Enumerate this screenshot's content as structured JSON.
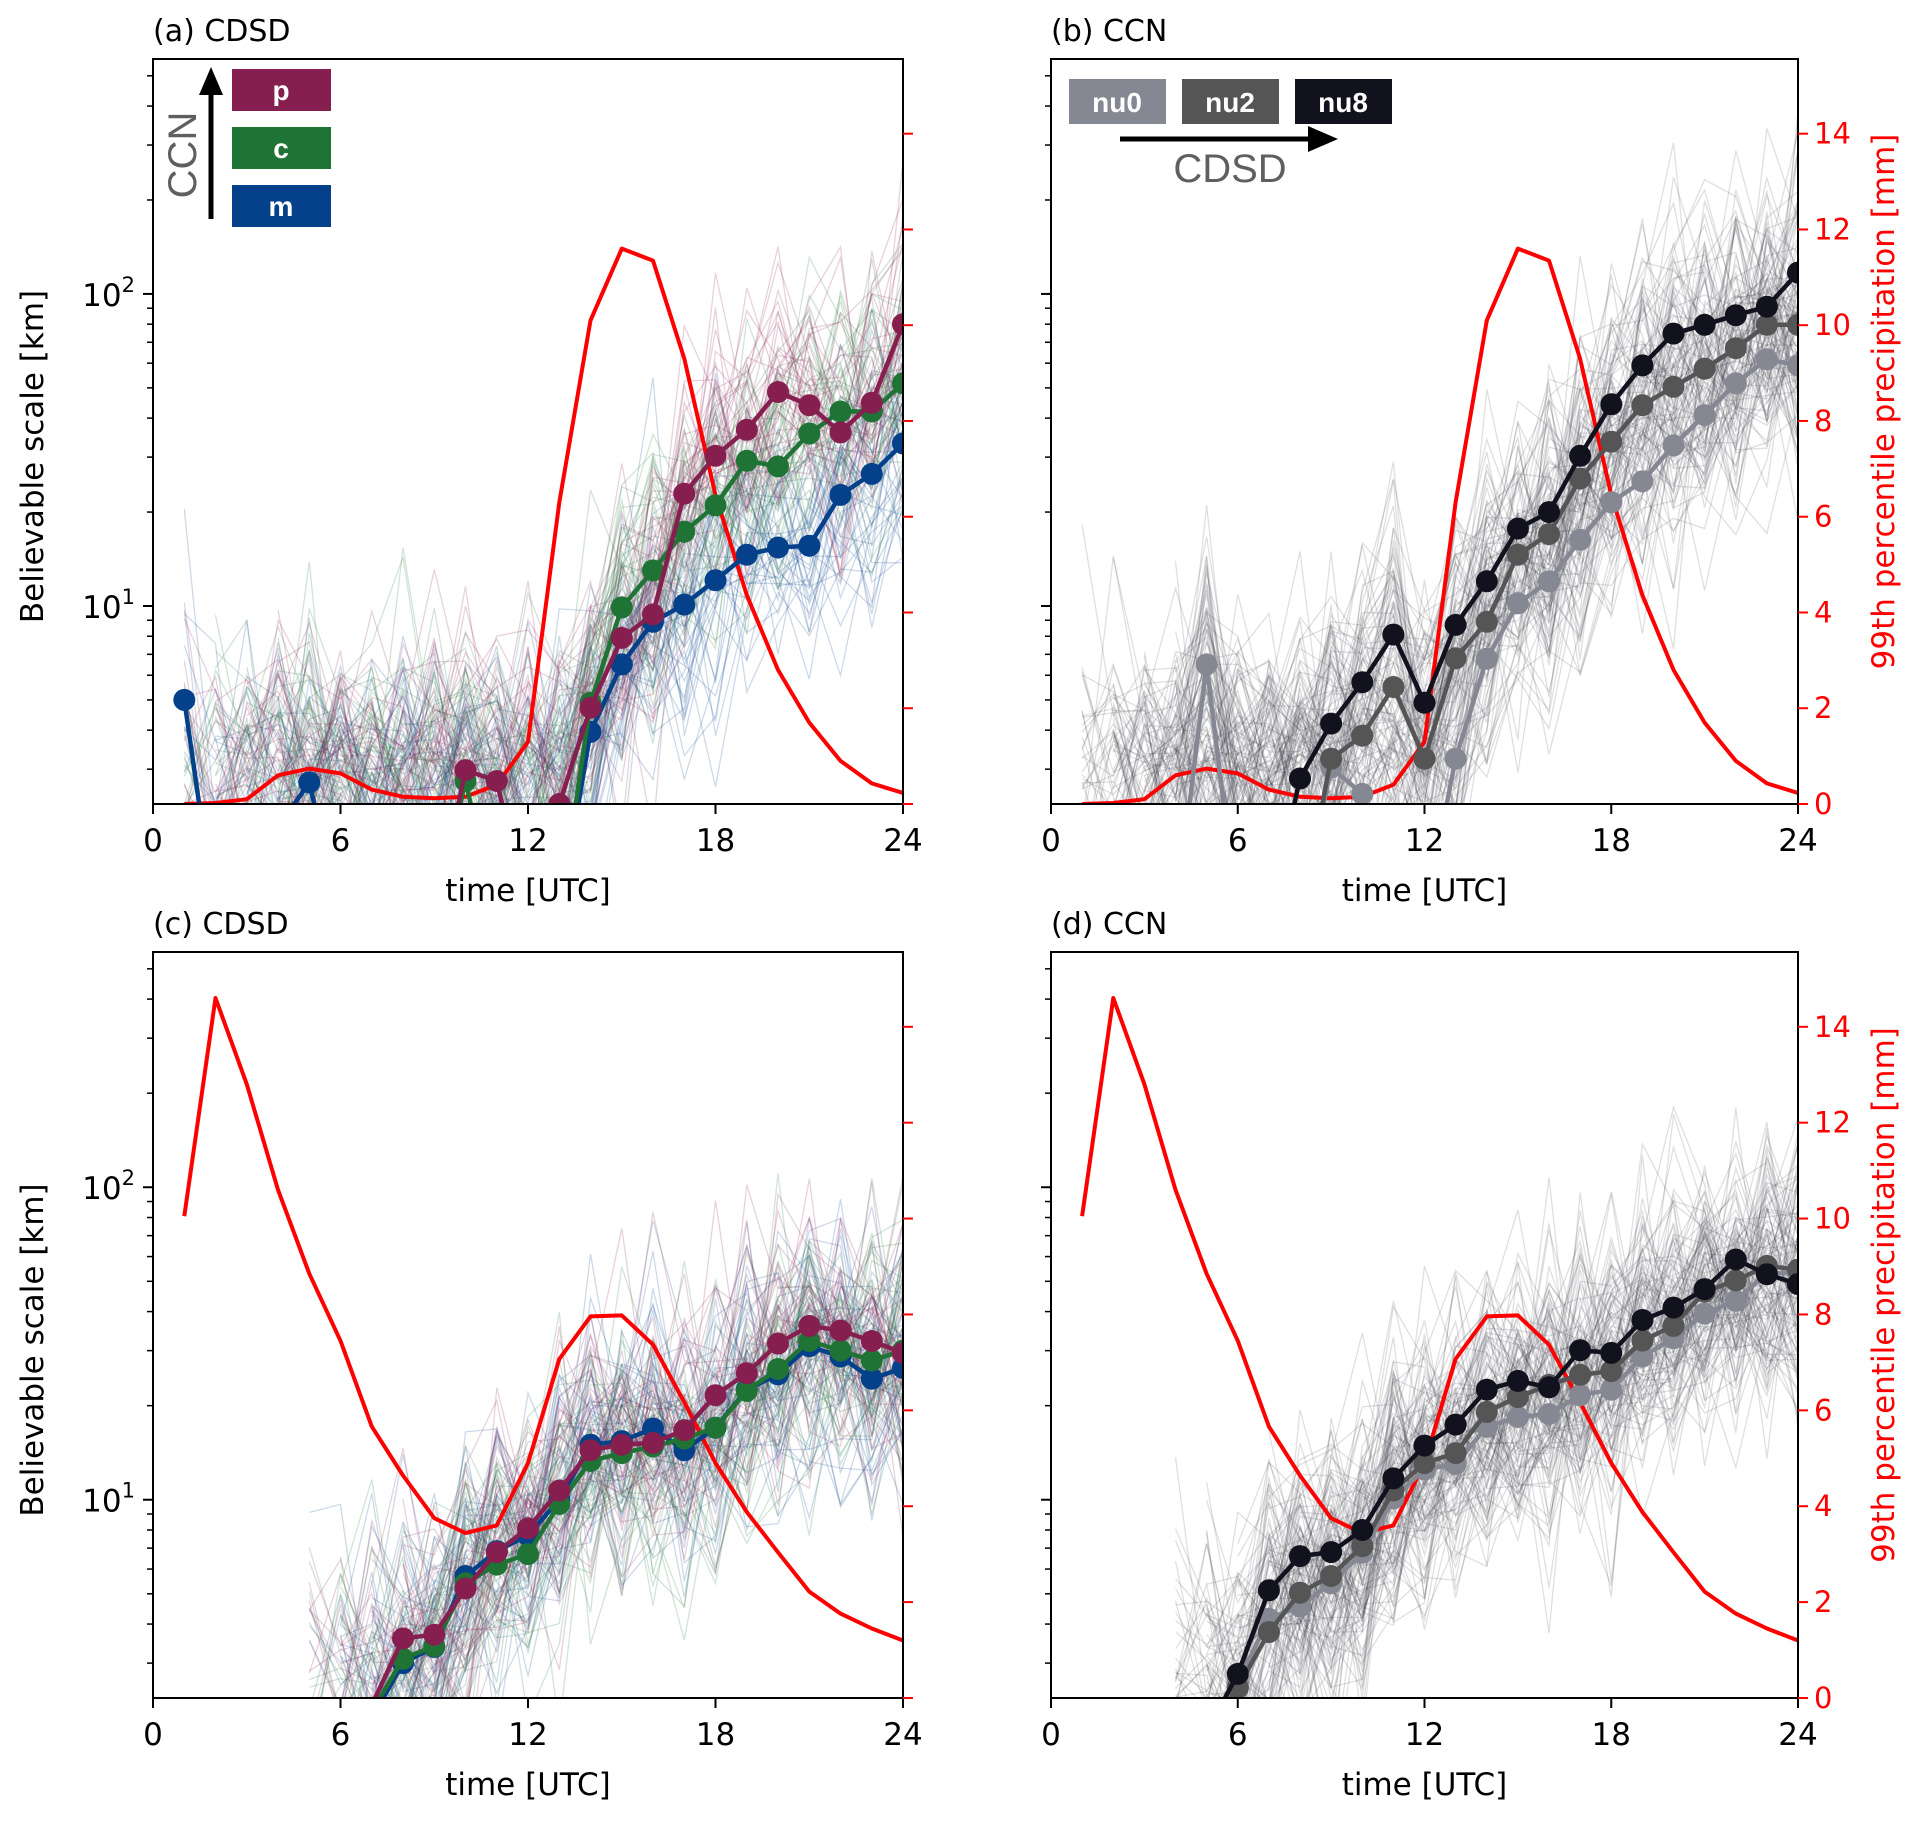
{
  "chart_data": [
    {
      "id": "a",
      "type": "line",
      "title": "(a) CDSD",
      "xlabel": "time [UTC]",
      "ylabel": "Believable scale [km]",
      "y2label": "",
      "show_left_tick_labels": true,
      "show_right_tick_labels": false,
      "xlim": [
        0,
        24
      ],
      "xticks": [
        "0",
        "6",
        "12",
        "18",
        "24"
      ],
      "yscale": "log",
      "ylim": [
        2.32,
        566
      ],
      "yticks": [
        {
          "value": 10,
          "base": "10",
          "exp": "1"
        },
        {
          "value": 100,
          "base": "10",
          "exp": "2"
        }
      ],
      "y2lim": [
        0,
        15.56
      ],
      "y2ticks": [
        "0",
        "2",
        "4",
        "6",
        "8",
        "10",
        "12",
        "14"
      ],
      "legend": {
        "style": "vertical-boxes",
        "arrow_label": "CCN",
        "items": [
          {
            "label": "p",
            "color": "#861f4f"
          },
          {
            "label": "c",
            "color": "#1f7335"
          },
          {
            "label": "m",
            "color": "#04418a"
          }
        ]
      },
      "ensemble": {
        "members_per_series": 40,
        "seed": 11,
        "start_hour": 1
      },
      "precip": {
        "name": "99th percentile precipitation",
        "color": "#ff0000",
        "x": [
          1,
          2,
          3,
          4,
          5,
          6,
          7,
          8,
          9,
          10,
          11,
          12,
          13,
          14,
          15,
          16,
          17,
          18,
          19,
          20,
          21,
          22,
          23,
          24
        ],
        "values": [
          0.0,
          0.02,
          0.1,
          0.6,
          0.74,
          0.64,
          0.3,
          0.15,
          0.12,
          0.15,
          0.4,
          1.3,
          6.3,
          10.1,
          11.6,
          11.35,
          9.3,
          6.45,
          4.36,
          2.8,
          1.7,
          0.9,
          0.43,
          0.23
        ]
      },
      "series": [
        {
          "name": "m",
          "color": "#04418a",
          "x": [
            1,
            2,
            5,
            6,
            13,
            14,
            15,
            16,
            17,
            18,
            19,
            20,
            21,
            22,
            23,
            24
          ],
          "values": [
            5.0,
            1.0,
            2.72,
            1.0,
            1.0,
            3.95,
            6.5,
            8.9,
            10.1,
            12.1,
            14.6,
            15.4,
            15.6,
            22.7,
            26.5,
            33.2
          ]
        },
        {
          "name": "c",
          "color": "#1f7335",
          "x": [
            9,
            10,
            11,
            13,
            14,
            15,
            16,
            17,
            18,
            19,
            20,
            21,
            22,
            23,
            24
          ],
          "values": [
            1.0,
            2.75,
            1.0,
            1.0,
            4.9,
            9.9,
            13.0,
            17.3,
            21.0,
            29.2,
            28.0,
            35.7,
            42.0,
            42.0,
            51.7
          ]
        },
        {
          "name": "p",
          "color": "#861f4f",
          "x": [
            9,
            10,
            11,
            12,
            13,
            14,
            15,
            16,
            17,
            18,
            19,
            20,
            21,
            22,
            23,
            24
          ],
          "values": [
            1.0,
            2.98,
            2.75,
            1.0,
            2.32,
            4.72,
            7.9,
            9.4,
            22.9,
            30.3,
            36.7,
            48.5,
            44.0,
            36.0,
            44.8,
            80.0
          ]
        }
      ]
    },
    {
      "id": "b",
      "type": "line",
      "title": "(b) CCN",
      "xlabel": "time [UTC]",
      "ylabel": "",
      "y2label": "99th percentile precipitation [mm]",
      "show_left_tick_labels": false,
      "show_right_tick_labels": true,
      "xlim": [
        0,
        24
      ],
      "xticks": [
        "0",
        "6",
        "12",
        "18",
        "24"
      ],
      "yscale": "log",
      "ylim": [
        2.32,
        566
      ],
      "yticks": [
        {
          "value": 10,
          "base": "10",
          "exp": "1"
        },
        {
          "value": 100,
          "base": "10",
          "exp": "2"
        }
      ],
      "y2lim": [
        0,
        15.56
      ],
      "y2ticks": [
        "0",
        "2",
        "4",
        "6",
        "8",
        "10",
        "12",
        "14"
      ],
      "legend": {
        "style": "horizontal-boxes",
        "arrow_label": "CDSD",
        "items": [
          {
            "label": "nu0",
            "color": "#858792"
          },
          {
            "label": "nu2",
            "color": "#555555"
          },
          {
            "label": "nu8",
            "color": "#12121e"
          }
        ]
      },
      "ensemble": {
        "members_per_series": 40,
        "seed": 23,
        "start_hour": 1
      },
      "precip": {
        "name": "99th percentile precipitation",
        "color": "#ff0000",
        "x": [
          1,
          2,
          3,
          4,
          5,
          6,
          7,
          8,
          9,
          10,
          11,
          12,
          13,
          14,
          15,
          16,
          17,
          18,
          19,
          20,
          21,
          22,
          23,
          24
        ],
        "values": [
          0.0,
          0.02,
          0.1,
          0.6,
          0.74,
          0.64,
          0.3,
          0.15,
          0.12,
          0.15,
          0.4,
          1.3,
          6.3,
          10.1,
          11.6,
          11.35,
          9.3,
          6.45,
          4.36,
          2.8,
          1.7,
          0.9,
          0.43,
          0.23
        ]
      },
      "series": [
        {
          "name": "nu0",
          "color": "#858792",
          "x": [
            4,
            5,
            6,
            8,
            9,
            10,
            11,
            12,
            13,
            14,
            15,
            16,
            17,
            18,
            19,
            20,
            21,
            22,
            23,
            24
          ],
          "values": [
            1.0,
            6.5,
            1.0,
            1.0,
            3.04,
            2.5,
            1.0,
            1.0,
            3.24,
            6.78,
            10.2,
            12.0,
            16.3,
            21.5,
            25.1,
            32.7,
            40.9,
            51.7,
            61.8,
            59.0
          ]
        },
        {
          "name": "nu2",
          "color": "#555555",
          "x": [
            8,
            9,
            10,
            11,
            12,
            13,
            14,
            15,
            16,
            17,
            18,
            19,
            20,
            21,
            22,
            23,
            24
          ],
          "values": [
            1.0,
            3.24,
            3.84,
            5.5,
            3.24,
            6.8,
            8.9,
            14.6,
            17.0,
            25.6,
            33.6,
            44.0,
            50.4,
            57.6,
            67.0,
            79.6,
            79.6
          ]
        },
        {
          "name": "nu8",
          "color": "#12121e",
          "x": [
            7,
            8,
            9,
            10,
            11,
            12,
            13,
            14,
            15,
            16,
            17,
            18,
            19,
            20,
            21,
            22,
            23,
            24
          ],
          "values": [
            1.0,
            2.8,
            4.2,
            5.7,
            8.1,
            4.9,
            8.7,
            12.0,
            17.7,
            20.0,
            30.3,
            44.3,
            59.0,
            74.6,
            79.6,
            85.5,
            91.0,
            117.0
          ]
        }
      ]
    },
    {
      "id": "c",
      "type": "line",
      "title": "(c) CDSD",
      "xlabel": "time [UTC]",
      "ylabel": "Believable scale [km]",
      "y2label": "",
      "show_left_tick_labels": true,
      "show_right_tick_labels": false,
      "xlim": [
        0,
        24
      ],
      "xticks": [
        "0",
        "6",
        "12",
        "18",
        "24"
      ],
      "yscale": "log",
      "ylim": [
        2.32,
        566
      ],
      "yticks": [
        {
          "value": 10,
          "base": "10",
          "exp": "1"
        },
        {
          "value": 100,
          "base": "10",
          "exp": "2"
        }
      ],
      "y2lim": [
        0,
        15.56
      ],
      "y2ticks": [
        "0",
        "2",
        "4",
        "6",
        "8",
        "10",
        "12",
        "14"
      ],
      "legend": null,
      "ensemble": {
        "members_per_series": 40,
        "seed": 37,
        "start_hour": 5
      },
      "precip": {
        "name": "99th percentile precipitation",
        "color": "#ff0000",
        "x": [
          1,
          2,
          3,
          4,
          5,
          6,
          7,
          8,
          9,
          10,
          11,
          12,
          13,
          14,
          15,
          16,
          17,
          18,
          19,
          20,
          21,
          22,
          23,
          24
        ],
        "values": [
          10.05,
          14.6,
          12.8,
          10.6,
          8.85,
          7.45,
          5.66,
          4.64,
          3.75,
          3.44,
          3.6,
          4.9,
          7.07,
          7.96,
          7.98,
          7.37,
          6.17,
          4.9,
          3.88,
          3.04,
          2.22,
          1.76,
          1.45,
          1.2
        ]
      },
      "series": [
        {
          "name": "m",
          "color": "#04418a",
          "x": [
            7,
            8,
            9,
            10,
            11,
            12,
            13,
            14,
            15,
            16,
            17,
            18,
            19,
            20,
            21,
            22,
            23,
            24
          ],
          "values": [
            2.0,
            3.0,
            3.38,
            5.7,
            6.85,
            7.7,
            10.0,
            15.0,
            15.4,
            16.9,
            14.4,
            17.0,
            22.5,
            25.2,
            31.0,
            28.7,
            24.4,
            26.4
          ]
        },
        {
          "name": "c",
          "color": "#1f7335",
          "x": [
            7,
            8,
            9,
            10,
            11,
            12,
            13,
            14,
            15,
            16,
            17,
            18,
            19,
            20,
            21,
            22,
            23,
            24
          ],
          "values": [
            2.1,
            3.1,
            3.4,
            5.4,
            6.2,
            6.7,
            9.7,
            13.3,
            14.1,
            14.8,
            15.7,
            17.0,
            22.3,
            26.2,
            32.2,
            30.0,
            27.9,
            30.0
          ]
        },
        {
          "name": "p",
          "color": "#861f4f",
          "x": [
            7,
            8,
            9,
            10,
            11,
            12,
            13,
            14,
            15,
            16,
            17,
            18,
            19,
            20,
            21,
            22,
            23,
            24
          ],
          "values": [
            2.2,
            3.6,
            3.7,
            5.2,
            6.8,
            8.1,
            10.7,
            14.4,
            15.0,
            15.2,
            16.7,
            21.6,
            25.4,
            31.6,
            36.0,
            34.8,
            32.2,
            29.5
          ]
        }
      ]
    },
    {
      "id": "d",
      "type": "line",
      "title": "(d) CCN",
      "xlabel": "time [UTC]",
      "ylabel": "",
      "y2label": "99th percentile precipitation [mm]",
      "show_left_tick_labels": false,
      "show_right_tick_labels": true,
      "xlim": [
        0,
        24
      ],
      "xticks": [
        "0",
        "6",
        "12",
        "18",
        "24"
      ],
      "yscale": "log",
      "ylim": [
        2.32,
        566
      ],
      "yticks": [
        {
          "value": 10,
          "base": "10",
          "exp": "1"
        },
        {
          "value": 100,
          "base": "10",
          "exp": "2"
        }
      ],
      "y2lim": [
        0,
        15.56
      ],
      "y2ticks": [
        "0",
        "2",
        "4",
        "6",
        "8",
        "10",
        "12",
        "14"
      ],
      "legend": null,
      "ensemble": {
        "members_per_series": 40,
        "seed": 51,
        "start_hour": 4
      },
      "precip": {
        "name": "99th percentile precipitation",
        "color": "#ff0000",
        "x": [
          1,
          2,
          3,
          4,
          5,
          6,
          7,
          8,
          9,
          10,
          11,
          12,
          13,
          14,
          15,
          16,
          17,
          18,
          19,
          20,
          21,
          22,
          23,
          24
        ],
        "values": [
          10.05,
          14.6,
          12.8,
          10.6,
          8.85,
          7.45,
          5.66,
          4.64,
          3.75,
          3.44,
          3.6,
          4.9,
          7.07,
          7.96,
          7.98,
          7.37,
          6.17,
          4.9,
          3.88,
          3.04,
          2.22,
          1.76,
          1.45,
          1.2
        ]
      },
      "series": [
        {
          "name": "nu0",
          "color": "#858792",
          "x": [
            5,
            6,
            7,
            8,
            9,
            10,
            11,
            12,
            13,
            14,
            15,
            16,
            17,
            18,
            19,
            20,
            21,
            22,
            23,
            24
          ],
          "values": [
            1.8,
            2.6,
            4.16,
            4.56,
            5.4,
            6.77,
            10.1,
            12.5,
            13.0,
            17.1,
            18.4,
            18.8,
            21.6,
            22.5,
            28.7,
            32.9,
            39.4,
            43.3,
            53.1,
            53.1
          ]
        },
        {
          "name": "nu2",
          "color": "#555555",
          "x": [
            5,
            6,
            7,
            8,
            9,
            10,
            11,
            12,
            13,
            14,
            15,
            16,
            17,
            18,
            19,
            20,
            21,
            22,
            23,
            24
          ],
          "values": [
            1.8,
            2.5,
            3.77,
            5.04,
            5.7,
            7.1,
            10.7,
            13.1,
            14.1,
            19.1,
            21.3,
            23.3,
            25.1,
            25.8,
            32.3,
            36.0,
            46.3,
            50.3,
            56.0,
            54.5
          ]
        },
        {
          "name": "nu8",
          "color": "#12121e",
          "x": [
            5,
            6,
            7,
            8,
            9,
            10,
            11,
            12,
            13,
            14,
            15,
            16,
            17,
            18,
            19,
            20,
            21,
            22,
            23,
            24
          ],
          "values": [
            1.8,
            2.77,
            5.13,
            6.6,
            6.8,
            8.0,
            11.7,
            14.9,
            17.4,
            22.5,
            24.0,
            22.9,
            30.1,
            29.5,
            37.6,
            41.2,
            47.2,
            58.7,
            52.7,
            49.0
          ]
        }
      ]
    }
  ]
}
